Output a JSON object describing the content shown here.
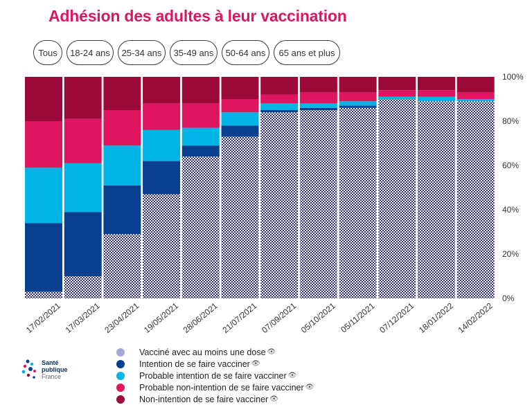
{
  "title": "Adhésion des adultes à leur vaccination",
  "tabs": [
    {
      "label": "Tous",
      "active": true
    },
    {
      "label": "18-24 ans",
      "active": false
    },
    {
      "label": "25-34 ans",
      "active": false
    },
    {
      "label": "35-49 ans",
      "active": false
    },
    {
      "label": "50-64 ans",
      "active": false
    },
    {
      "label": "65 ans et plus",
      "active": false
    }
  ],
  "legend": [
    {
      "label": "Vacciné avec au moins une dose",
      "color": "#a7a7d8",
      "icon": "eye-icon"
    },
    {
      "label": "Intention de se faire vacciner",
      "color": "#083f8f",
      "icon": "eye-icon"
    },
    {
      "label": "Probable intention de se faire vacciner",
      "color": "#00b4e6",
      "icon": "eye-icon"
    },
    {
      "label": "Probable non-intention de se faire vacciner",
      "color": "#e0155f",
      "icon": "eye-icon"
    },
    {
      "label": "Non-intention de se faire vacciner",
      "color": "#9c0a3a",
      "icon": "eye-icon"
    }
  ],
  "logo": {
    "line1": "Santé",
    "line2": "publique",
    "line3": "France"
  },
  "chart_data": {
    "type": "bar",
    "stacked": true,
    "categories": [
      "17/02/2021",
      "17/03/2021",
      "23/04/2021",
      "19/05/2021",
      "28/06/2021",
      "21/07/2021",
      "07/09/2021",
      "05/10/2021",
      "05/11/2021",
      "07/12/2021",
      "18/01/2022",
      "14/02/2022"
    ],
    "series": [
      {
        "name": "Vacciné avec au moins une dose",
        "color": "#2b2b8f",
        "pattern": "checker",
        "values": [
          3,
          10,
          29,
          47,
          64,
          73,
          84,
          85,
          86,
          90,
          89,
          89
        ]
      },
      {
        "name": "Intention de se faire vacciner",
        "color": "#083f8f",
        "values": [
          31,
          29,
          22,
          15,
          5,
          5,
          1,
          1,
          1,
          0,
          0,
          0
        ]
      },
      {
        "name": "Probable intention de se faire vacciner",
        "color": "#00b4e6",
        "values": [
          25,
          22,
          18,
          14,
          8,
          6,
          3,
          2,
          2,
          1,
          2,
          1
        ]
      },
      {
        "name": "Probable non-intention de se faire vacciner",
        "color": "#e0155f",
        "values": [
          21,
          20,
          16,
          12,
          11,
          6,
          4,
          5,
          4,
          3,
          3,
          3
        ]
      },
      {
        "name": "Non-intention de se faire vacciner",
        "color": "#9c0a3a",
        "values": [
          20,
          19,
          15,
          12,
          12,
          10,
          8,
          7,
          7,
          6,
          6,
          7
        ]
      }
    ],
    "yticks": [
      "0%",
      "20%",
      "40%",
      "60%",
      "80%",
      "100%"
    ],
    "ylim": [
      0,
      100
    ],
    "grid": false
  }
}
